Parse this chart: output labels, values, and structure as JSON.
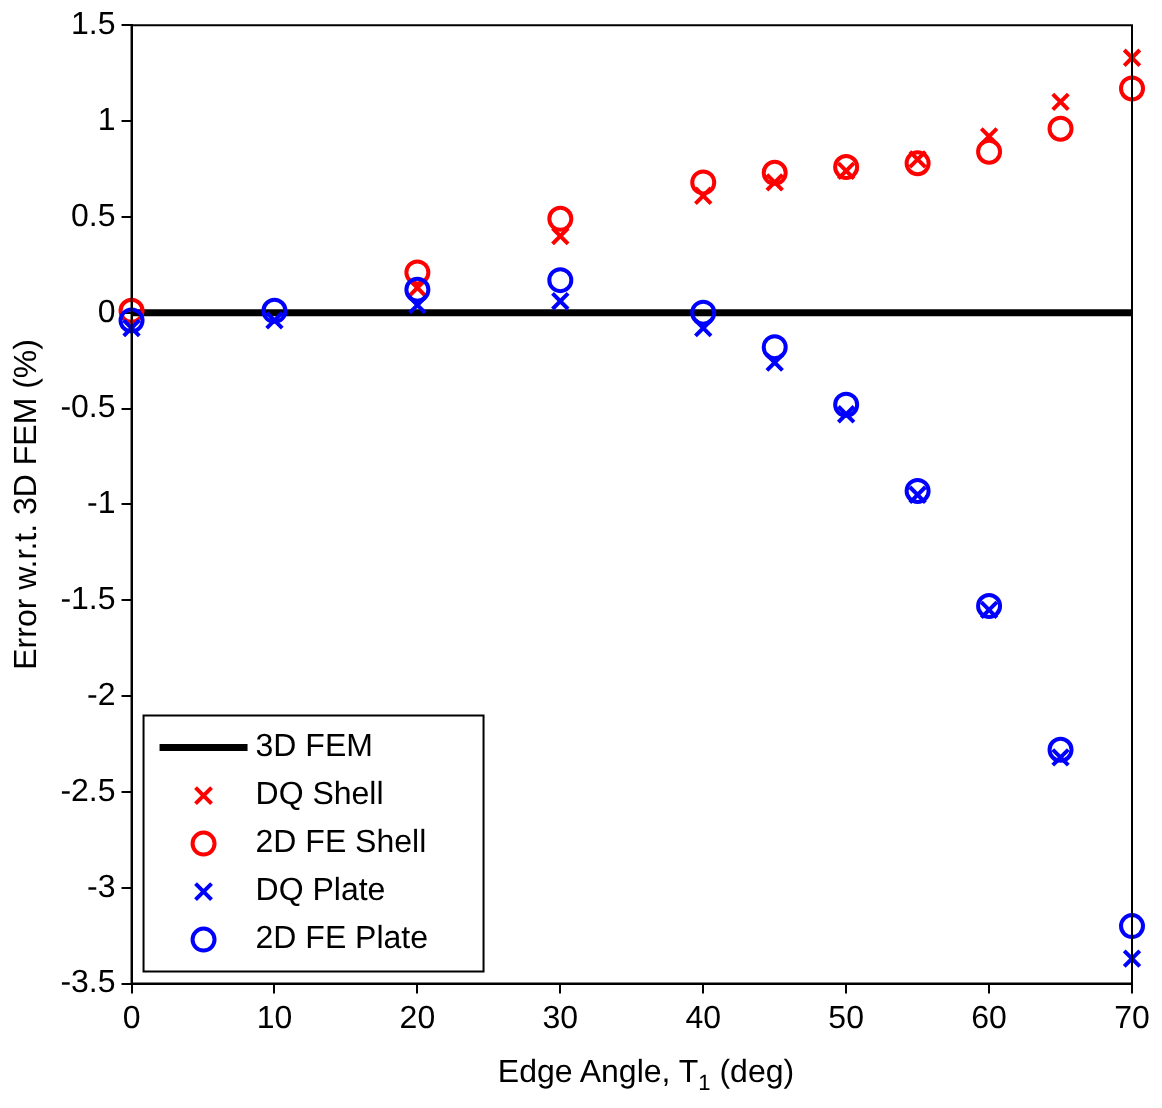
{
  "chart_data": {
    "type": "scatter",
    "xlabel": "Edge Angle, T$_{1}$ (deg)",
    "ylabel": "Error w.r.t. 3D FEM (%)",
    "x": [
      0,
      10,
      20,
      30,
      40,
      45,
      50,
      55,
      60,
      65,
      70
    ],
    "xlim": [
      0,
      70
    ],
    "xticks": [
      0,
      10,
      20,
      30,
      40,
      50,
      60,
      70
    ],
    "ylim": [
      -3.5,
      1.5
    ],
    "yticks": [
      -3.5,
      -3,
      -2.5,
      -2,
      -1.5,
      -1,
      -0.5,
      0,
      0.5,
      1,
      1.5
    ],
    "grid": false,
    "legend": "bottom left",
    "series": [
      {
        "name": "3D FEM",
        "type": "line",
        "color": "#000000",
        "x": [
          0,
          70
        ],
        "values": [
          0,
          0
        ],
        "marker": "none",
        "line_style": "solid"
      },
      {
        "name": "DQ Shell",
        "color": "#ff0000",
        "marker": "cross",
        "values": [
          null,
          null,
          0.13,
          0.4,
          0.61,
          0.68,
          0.74,
          0.8,
          0.92,
          1.1,
          1.33
        ]
      },
      {
        "name": "2D FE Shell",
        "color": "#ff0000",
        "marker": "circle",
        "values": [
          0.01,
          null,
          0.21,
          0.49,
          0.68,
          0.73,
          0.76,
          0.78,
          0.84,
          0.96,
          1.17
        ]
      },
      {
        "name": "DQ Plate",
        "color": "#0000ff",
        "marker": "cross",
        "values": [
          -0.08,
          -0.04,
          0.04,
          0.06,
          -0.08,
          -0.26,
          -0.53,
          -0.95,
          -1.55,
          -2.32,
          -3.37
        ]
      },
      {
        "name": "2D FE Plate",
        "color": "#0000ff",
        "marker": "circle",
        "values": [
          -0.04,
          0.01,
          0.12,
          0.17,
          0.0,
          -0.18,
          -0.48,
          -0.93,
          -1.53,
          -2.28,
          -3.2
        ]
      }
    ]
  }
}
